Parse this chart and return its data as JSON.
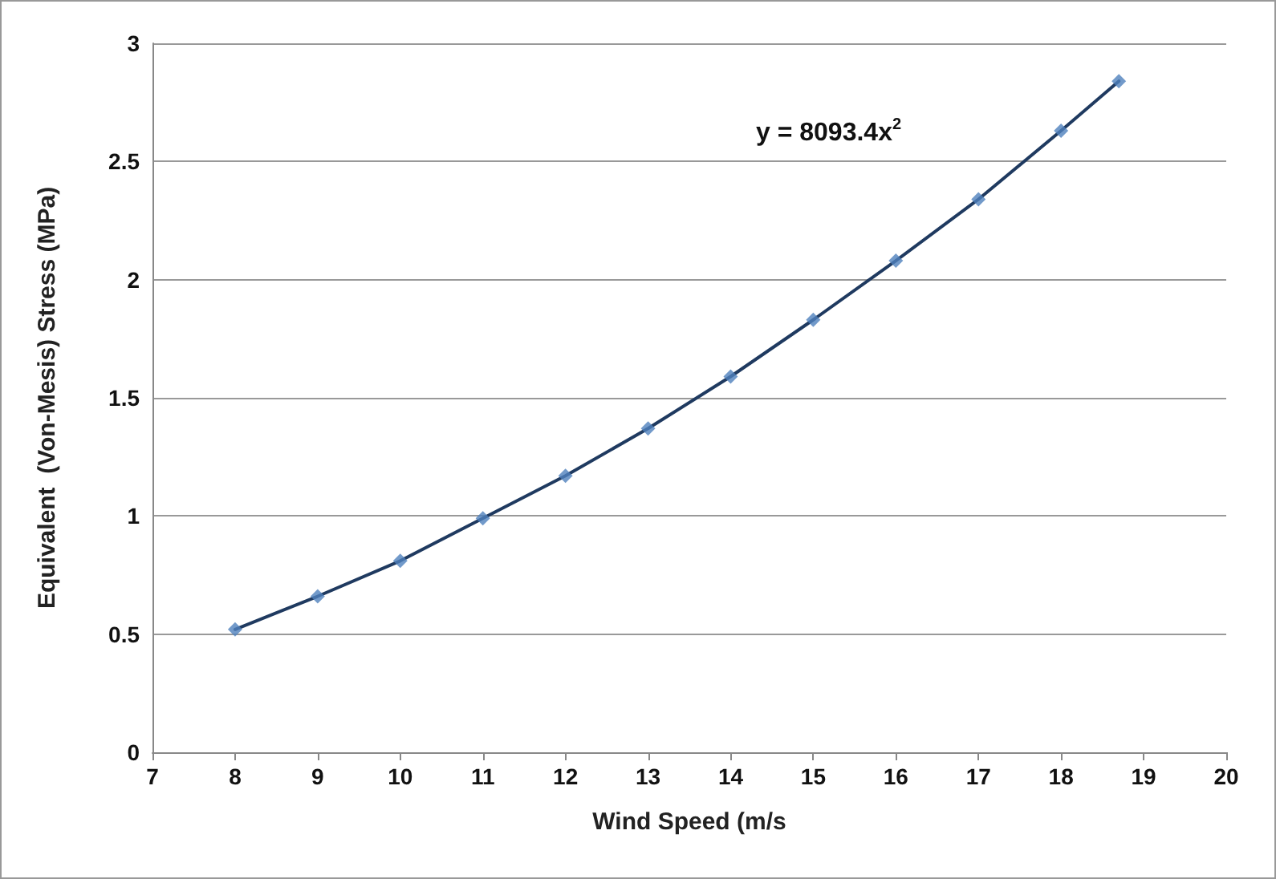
{
  "chart_data": {
    "type": "scatter",
    "xlabel": "Wind Speed (m/s",
    "ylabel": "Equivalent  (Von-Mesis) Stress (MPa)",
    "x": [
      8,
      9,
      10,
      11,
      12,
      13,
      14,
      15,
      16,
      17,
      18,
      18.7
    ],
    "series": [
      {
        "color": "#4f81bd",
        "marker": "diamond",
        "values": [
          0.52,
          0.66,
          0.81,
          0.99,
          1.17,
          1.37,
          1.59,
          1.83,
          2.08,
          2.34,
          2.63,
          2.84
        ]
      },
      {
        "type": "line",
        "color": "#1f3a60",
        "marker": "none",
        "line_style": "solid",
        "values": [
          0.52,
          0.66,
          0.81,
          0.99,
          1.17,
          1.37,
          1.59,
          1.83,
          2.08,
          2.34,
          2.63,
          2.84
        ]
      }
    ],
    "annotations": [
      "y = 8093.4x$^{2}$"
    ],
    "xlim": [
      7,
      20
    ],
    "xticks": [
      7,
      8,
      9,
      10,
      11,
      12,
      13,
      14,
      15,
      16,
      17,
      18,
      19,
      20
    ],
    "ylim": [
      0,
      3
    ],
    "yticks": [
      0,
      0.5,
      1,
      1.5,
      2,
      2.5,
      3
    ],
    "grid": "y"
  }
}
